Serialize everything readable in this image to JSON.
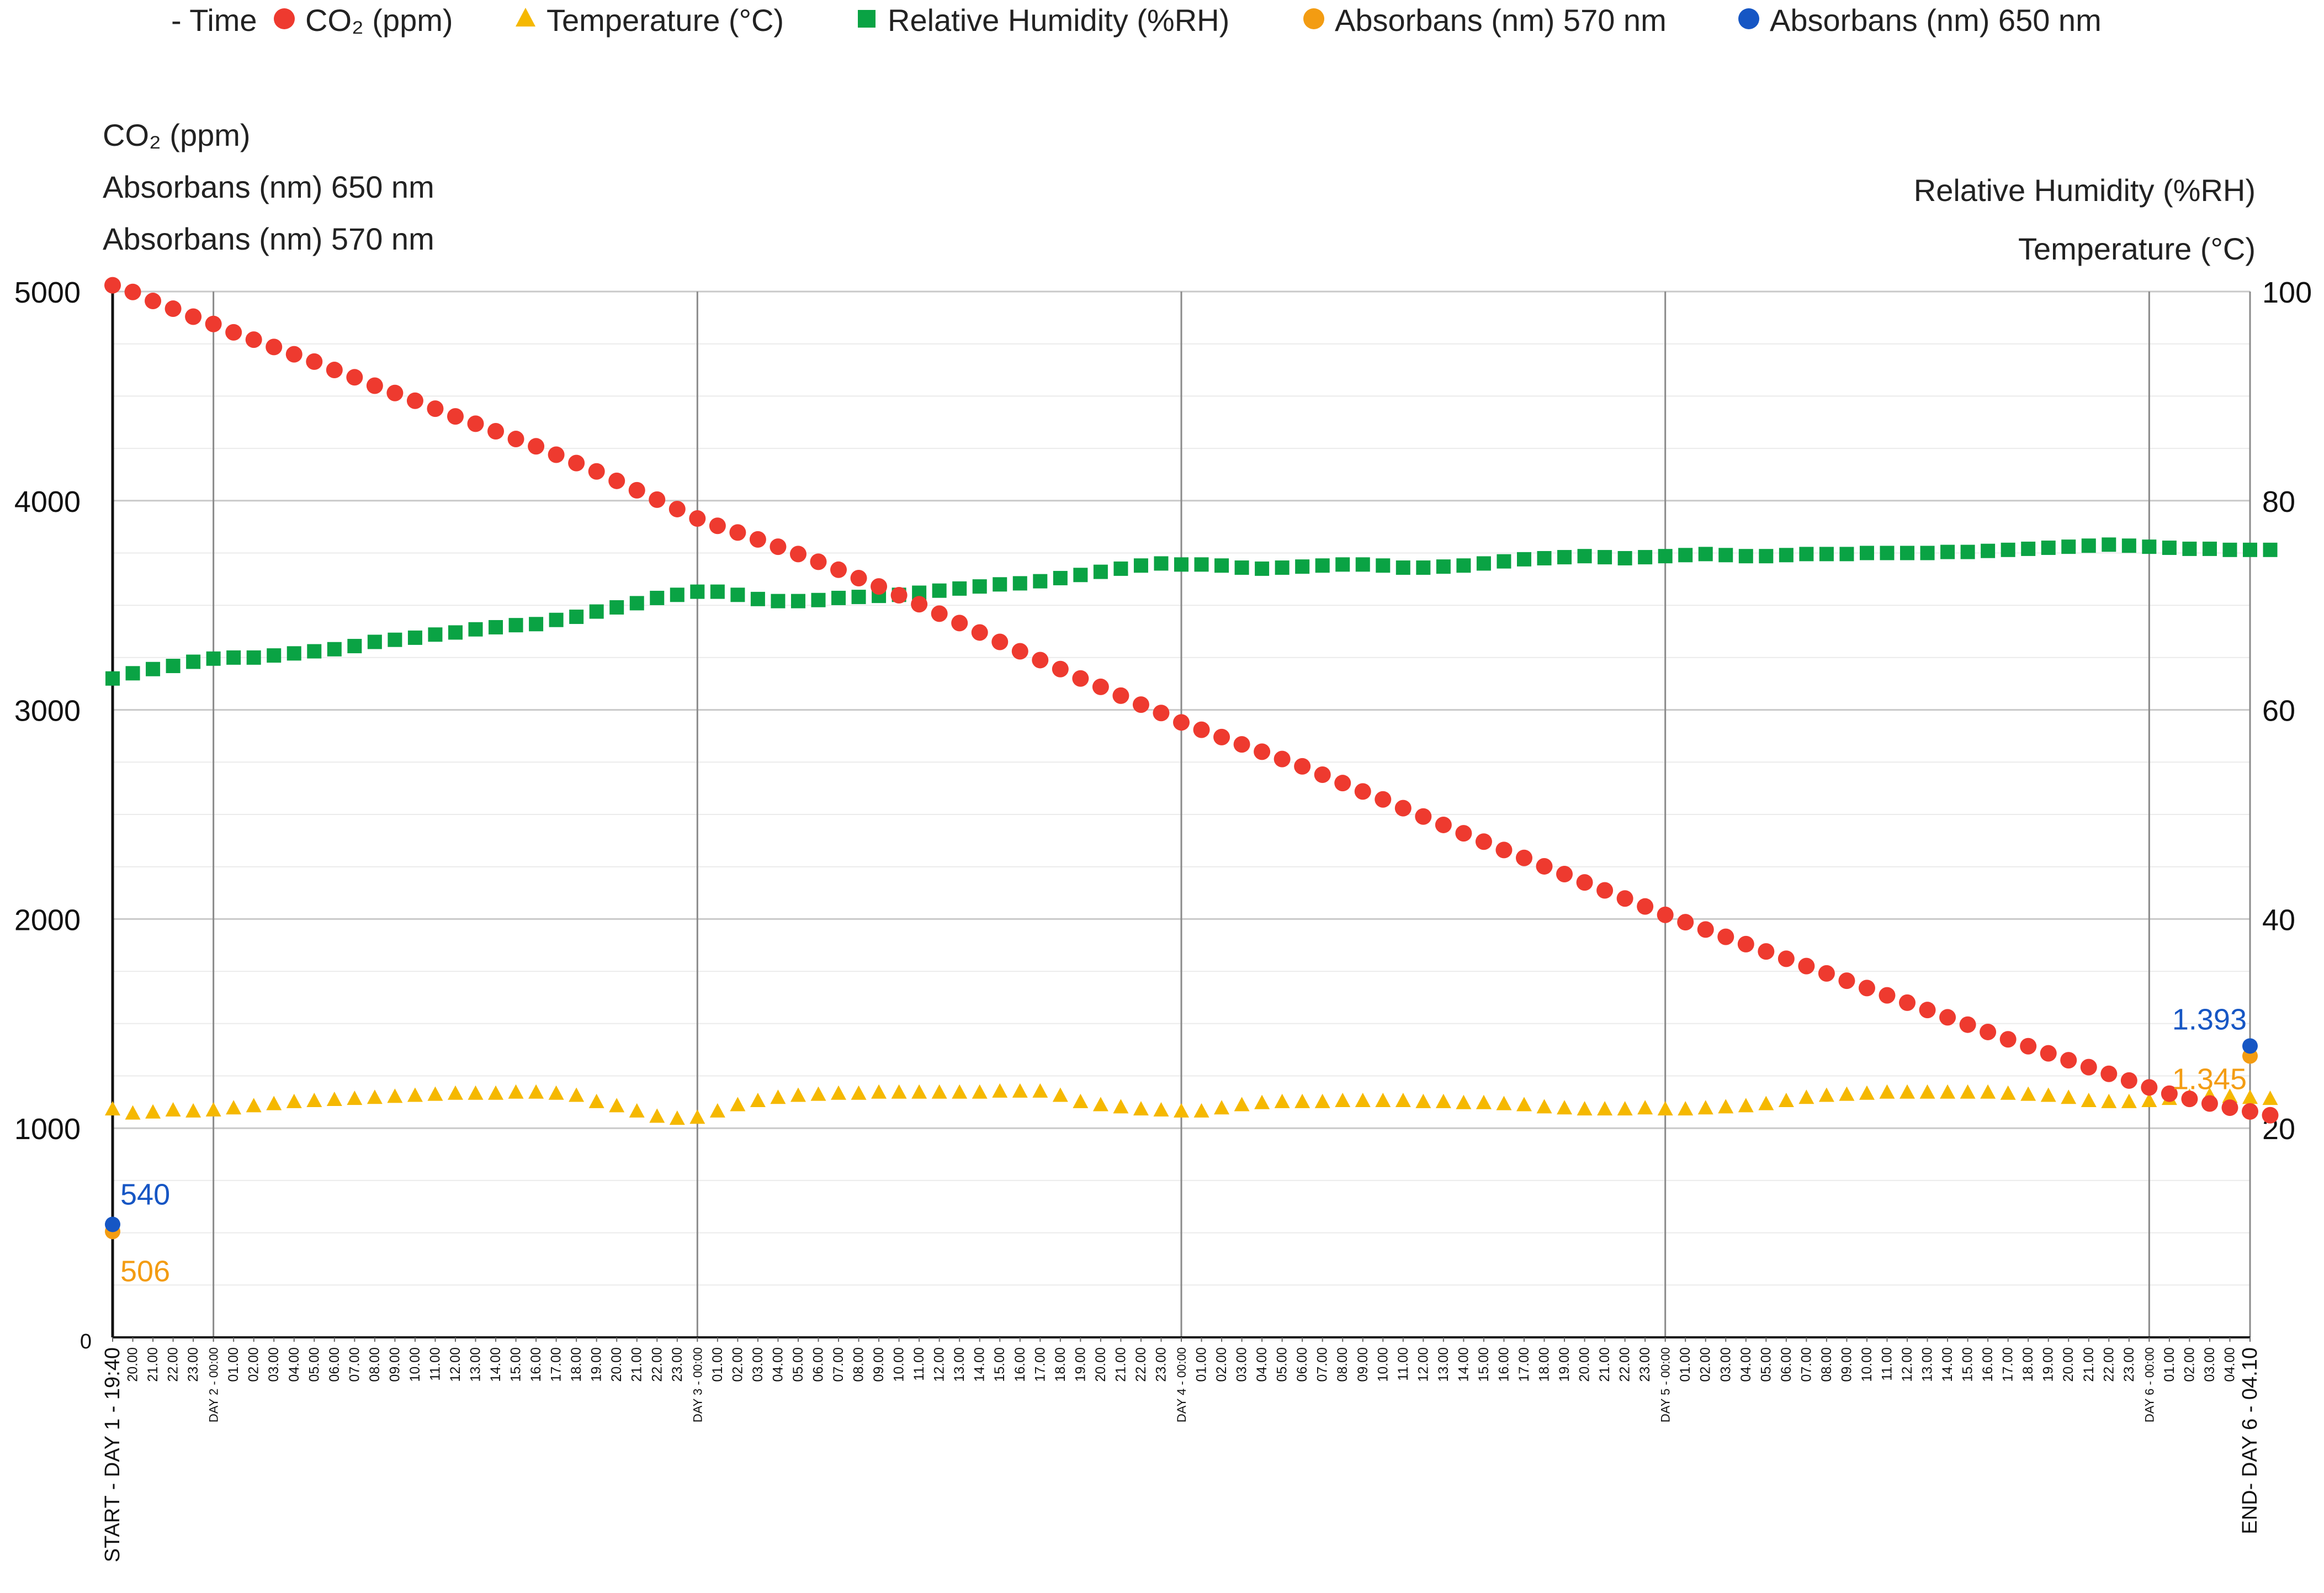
{
  "chart_data": {
    "type": "scatter",
    "legend": [
      {
        "key": "time",
        "label": "- Time",
        "marker": "none",
        "color": "#222222"
      },
      {
        "key": "co2",
        "label": "CO₂ (ppm)",
        "marker": "circle",
        "color": "#ee3a2f"
      },
      {
        "key": "temp",
        "label": "Temperature (°C)",
        "marker": "triangle",
        "color": "#f5b800"
      },
      {
        "key": "rh",
        "label": "Relative Humidity (%RH)",
        "marker": "square",
        "color": "#0aa344"
      },
      {
        "key": "a570",
        "label": "Absorbans (nm) 570 nm",
        "marker": "circle",
        "color": "#f39c12"
      },
      {
        "key": "a650",
        "label": "Absorbans (nm) 650 nm",
        "marker": "circle",
        "color": "#1656c4"
      }
    ],
    "left_axis_titles": [
      "CO₂ (ppm)",
      "Absorbans (nm) 650 nm",
      "Absorbans (nm) 570 nm"
    ],
    "right_axis_titles": [
      "Relative Humidity (%RH)",
      "Temperature (°C)"
    ],
    "ylim_left": [
      0,
      5000
    ],
    "ylim_right": [
      0,
      100
    ],
    "yticks_left": [
      "0",
      "1000",
      "2000",
      "3000",
      "4000",
      "5000"
    ],
    "yticks_right": [
      "20",
      "40",
      "60",
      "80",
      "100"
    ],
    "x_labels": [
      "START - DAY 1 - 19:40",
      "20.00",
      "21.00",
      "22.00",
      "23.00",
      "DAY 2 - 00:00",
      "01.00",
      "02.00",
      "03.00",
      "04.00",
      "05.00",
      "06.00",
      "07.00",
      "08.00",
      "09.00",
      "10.00",
      "11.00",
      "12.00",
      "13.00",
      "14.00",
      "15.00",
      "16.00",
      "17.00",
      "18.00",
      "19.00",
      "20.00",
      "21.00",
      "22.00",
      "23.00",
      "DAY 3 - 00:00",
      "01.00",
      "02.00",
      "03.00",
      "04.00",
      "05.00",
      "06.00",
      "07.00",
      "08.00",
      "09.00",
      "10.00",
      "11.00",
      "12.00",
      "13.00",
      "14.00",
      "15.00",
      "16.00",
      "17.00",
      "18.00",
      "19.00",
      "20.00",
      "21.00",
      "22.00",
      "23.00",
      "DAY 4 - 00:00",
      "01.00",
      "02.00",
      "03.00",
      "04.00",
      "05.00",
      "06.00",
      "07.00",
      "08.00",
      "09.00",
      "10.00",
      "11.00",
      "12.00",
      "13.00",
      "14.00",
      "15.00",
      "16.00",
      "17.00",
      "18.00",
      "19.00",
      "20.00",
      "21.00",
      "22.00",
      "23.00",
      "DAY 5 - 00:00",
      "01.00",
      "02.00",
      "03.00",
      "04.00",
      "05.00",
      "06.00",
      "07.00",
      "08.00",
      "09.00",
      "10.00",
      "11.00",
      "12.00",
      "13.00",
      "14.00",
      "15.00",
      "16.00",
      "17.00",
      "18.00",
      "19.00",
      "20.00",
      "21.00",
      "22.00",
      "23.00",
      "DAY 6 - 00:00",
      "01.00",
      "02.00",
      "03.00",
      "04.00",
      "END- DAY 6 - 04.10"
    ],
    "day_marker_indices": [
      5,
      29,
      53,
      77,
      101
    ],
    "series": [
      {
        "name": "CO₂ (ppm)",
        "axis": "left",
        "values": [
          5030,
          4998,
          4955,
          4918,
          4880,
          4845,
          4805,
          4770,
          4735,
          4700,
          4665,
          4625,
          4590,
          4550,
          4515,
          4478,
          4440,
          4403,
          4368,
          4332,
          4295,
          4260,
          4220,
          4180,
          4140,
          4095,
          4050,
          4005,
          3960,
          3915,
          3880,
          3848,
          3815,
          3780,
          3745,
          3708,
          3670,
          3630,
          3590,
          3548,
          3505,
          3460,
          3415,
          3370,
          3325,
          3280,
          3238,
          3195,
          3150,
          3110,
          3068,
          3025,
          2985,
          2940,
          2905,
          2870,
          2835,
          2800,
          2765,
          2730,
          2690,
          2650,
          2610,
          2572,
          2530,
          2490,
          2450,
          2410,
          2370,
          2330,
          2292,
          2252,
          2215,
          2175,
          2137,
          2098,
          2060,
          2020,
          1985,
          1950,
          1915,
          1880,
          1845,
          1810,
          1775,
          1740,
          1705,
          1670,
          1635,
          1600,
          1565,
          1530,
          1495,
          1460,
          1425,
          1392,
          1358,
          1325,
          1292,
          1260,
          1228,
          1195,
          1165,
          1140,
          1118,
          1098,
          1080,
          1062
        ]
      },
      {
        "name": "Temperature (°C)",
        "axis": "right",
        "values": [
          21.8,
          21.4,
          21.5,
          21.7,
          21.6,
          21.7,
          21.9,
          22.1,
          22.3,
          22.5,
          22.6,
          22.7,
          22.8,
          22.9,
          23.0,
          23.1,
          23.2,
          23.3,
          23.3,
          23.3,
          23.4,
          23.4,
          23.3,
          23.1,
          22.5,
          22.1,
          21.6,
          21.1,
          20.9,
          21.0,
          21.6,
          22.2,
          22.6,
          22.9,
          23.1,
          23.2,
          23.3,
          23.3,
          23.4,
          23.4,
          23.4,
          23.4,
          23.4,
          23.4,
          23.5,
          23.5,
          23.5,
          23.1,
          22.5,
          22.2,
          22.0,
          21.8,
          21.7,
          21.6,
          21.6,
          21.9,
          22.2,
          22.4,
          22.5,
          22.5,
          22.5,
          22.6,
          22.6,
          22.6,
          22.6,
          22.5,
          22.5,
          22.4,
          22.4,
          22.3,
          22.2,
          22.0,
          21.9,
          21.8,
          21.8,
          21.8,
          21.9,
          21.8,
          21.8,
          21.9,
          22.0,
          22.1,
          22.3,
          22.6,
          22.9,
          23.1,
          23.2,
          23.3,
          23.4,
          23.4,
          23.4,
          23.4,
          23.4,
          23.4,
          23.3,
          23.2,
          23.1,
          22.9,
          22.6,
          22.5,
          22.5,
          22.6,
          22.8,
          23.0,
          23.1,
          23.0,
          22.9,
          22.8
        ]
      },
      {
        "name": "Relative Humidity (%RH)",
        "axis": "right",
        "values": [
          63.0,
          63.5,
          63.9,
          64.2,
          64.6,
          64.9,
          65.0,
          65.0,
          65.2,
          65.4,
          65.6,
          65.8,
          66.1,
          66.5,
          66.7,
          66.9,
          67.2,
          67.4,
          67.7,
          67.9,
          68.1,
          68.2,
          68.6,
          68.9,
          69.4,
          69.8,
          70.2,
          70.7,
          71.0,
          71.3,
          71.3,
          71.0,
          70.6,
          70.4,
          70.4,
          70.5,
          70.7,
          70.8,
          70.9,
          71.0,
          71.2,
          71.4,
          71.6,
          71.8,
          72.0,
          72.1,
          72.3,
          72.6,
          72.9,
          73.2,
          73.5,
          73.8,
          74.0,
          73.9,
          73.9,
          73.8,
          73.6,
          73.5,
          73.6,
          73.7,
          73.8,
          73.9,
          73.9,
          73.8,
          73.6,
          73.6,
          73.7,
          73.8,
          74.0,
          74.2,
          74.4,
          74.5,
          74.6,
          74.7,
          74.6,
          74.5,
          74.6,
          74.7,
          74.8,
          74.9,
          74.8,
          74.7,
          74.7,
          74.8,
          74.9,
          74.9,
          74.9,
          75.0,
          75.0,
          75.0,
          75.0,
          75.1,
          75.1,
          75.2,
          75.3,
          75.4,
          75.5,
          75.6,
          75.7,
          75.8,
          75.7,
          75.6,
          75.5,
          75.4,
          75.4,
          75.3,
          75.3,
          75.3
        ]
      }
    ],
    "endpoint_series": [
      {
        "name": "Absorbans (nm) 570 nm",
        "color": "#f39c12",
        "labels": [
          "506",
          "1.345"
        ],
        "values": [
          506,
          1345
        ]
      },
      {
        "name": "Absorbans (nm) 650 nm",
        "color": "#1656c4",
        "labels": [
          "540",
          "1.393"
        ],
        "values": [
          540,
          1393
        ]
      }
    ],
    "grid": true
  }
}
